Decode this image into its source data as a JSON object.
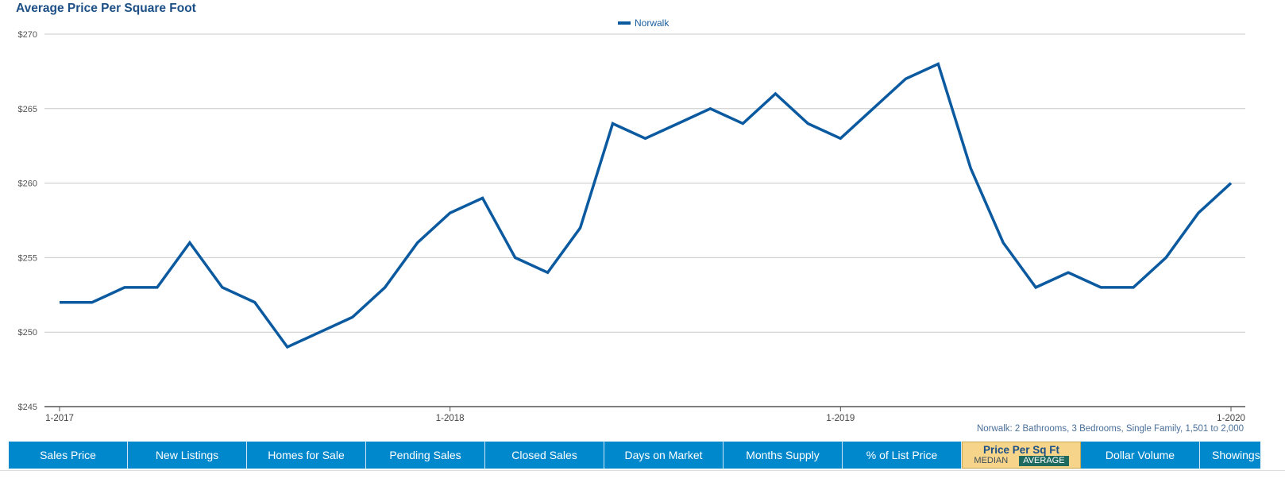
{
  "chart_data": {
    "type": "line",
    "title": "Average Price Per Square Foot",
    "legend": [
      "Norwalk"
    ],
    "legend_position": "top-center",
    "grid": true,
    "ylim": [
      245,
      270
    ],
    "yticks": [
      "$245",
      "$250",
      "$255",
      "$260",
      "$265",
      "$270"
    ],
    "yticks_values": [
      245,
      250,
      255,
      260,
      265,
      270
    ],
    "xticks": [
      "1-2017",
      "1-2018",
      "1-2019",
      "1-2020"
    ],
    "x": [
      "1-2017",
      "2-2017",
      "3-2017",
      "4-2017",
      "5-2017",
      "6-2017",
      "7-2017",
      "8-2017",
      "9-2017",
      "10-2017",
      "11-2017",
      "12-2017",
      "1-2018",
      "2-2018",
      "3-2018",
      "4-2018",
      "5-2018",
      "6-2018",
      "7-2018",
      "8-2018",
      "9-2018",
      "10-2018",
      "11-2018",
      "12-2018",
      "1-2019",
      "2-2019",
      "3-2019",
      "4-2019",
      "5-2019",
      "6-2019",
      "7-2019",
      "8-2019",
      "9-2019",
      "10-2019",
      "11-2019",
      "12-2019",
      "1-2020"
    ],
    "series": [
      {
        "name": "Norwalk",
        "color": "#0b5aa0",
        "values": [
          252,
          252,
          253,
          253,
          256,
          253,
          252,
          249,
          250,
          251,
          253,
          256,
          258,
          259,
          255,
          254,
          257,
          264,
          263,
          264,
          265,
          264,
          266,
          264,
          263,
          265,
          267,
          268,
          261,
          256,
          253,
          254,
          253,
          253,
          255,
          258,
          260
        ]
      }
    ]
  },
  "footnote": "Norwalk: 2 Bathrooms, 3 Bedrooms, Single Family, 1,501 to 2,000",
  "tabs": [
    {
      "label": "Sales Price"
    },
    {
      "label": "New Listings"
    },
    {
      "label": "Homes for Sale"
    },
    {
      "label": "Pending Sales"
    },
    {
      "label": "Closed Sales"
    },
    {
      "label": "Days on Market"
    },
    {
      "label": "Months Supply"
    },
    {
      "label": "% of List Price"
    },
    {
      "label": "Price Per Sq Ft",
      "sub_median": "MEDIAN",
      "sub_average": "AVERAGE",
      "active": true,
      "selected_mode": "AVERAGE"
    },
    {
      "label": "Dollar Volume"
    },
    {
      "label": "Showings"
    }
  ],
  "colors": {
    "line": "#0b5aa0",
    "tab_bg": "#0088cc",
    "tab_active_bg": "#f6d58a",
    "title": "#1b4f85"
  }
}
